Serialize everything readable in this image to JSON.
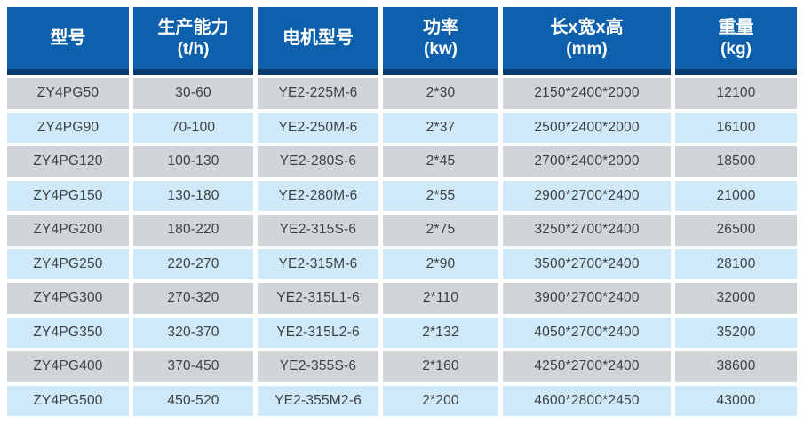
{
  "colors": {
    "header-bg": "#0d60ab",
    "header-strip": "#0b3a6e",
    "row-gray": "#d2d5d8",
    "row-blue": "#cfe9f8",
    "body-text": "#3d4144",
    "header-text": "#ffffff",
    "page-bg": "#ffffff"
  },
  "table": {
    "header": {
      "cols": [
        {
          "title": "型号",
          "unit": ""
        },
        {
          "title": "生产能力",
          "unit": "(t/h)"
        },
        {
          "title": "电机型号",
          "unit": ""
        },
        {
          "title": "功率",
          "unit": "(kw)"
        },
        {
          "title": "长x宽x高",
          "unit": "(mm)"
        },
        {
          "title": "重量",
          "unit": "(kg)"
        }
      ]
    },
    "rows": [
      [
        "ZY4PG50",
        "30-60",
        "YE2-225M-6",
        "2*30",
        "2150*2400*2000",
        "12100"
      ],
      [
        "ZY4PG90",
        "70-100",
        "YE2-250M-6",
        "2*37",
        "2500*2400*2000",
        "16100"
      ],
      [
        "ZY4PG120",
        "100-130",
        "YE2-280S-6",
        "2*45",
        "2700*2400*2000",
        "18500"
      ],
      [
        "ZY4PG150",
        "130-180",
        "YE2-280M-6",
        "2*55",
        "2900*2700*2400",
        "21000"
      ],
      [
        "ZY4PG200",
        "180-220",
        "YE2-315S-6",
        "2*75",
        "3250*2700*2400",
        "26500"
      ],
      [
        "ZY4PG250",
        "220-270",
        "YE2-315M-6",
        "2*90",
        "3500*2700*2400",
        "28100"
      ],
      [
        "ZY4PG300",
        "270-320",
        "YE2-315L1-6",
        "2*110",
        "3900*2700*2400",
        "32000"
      ],
      [
        "ZY4PG350",
        "320-370",
        "YE2-315L2-6",
        "2*132",
        "4050*2700*2400",
        "35200"
      ],
      [
        "ZY4PG400",
        "370-450",
        "YE2-355S-6",
        "2*160",
        "4250*2700*2400",
        "38600"
      ],
      [
        "ZY4PG500",
        "450-520",
        "YE2-355M2-6",
        "2*200",
        "4600*2800*2450",
        "43000"
      ]
    ]
  }
}
